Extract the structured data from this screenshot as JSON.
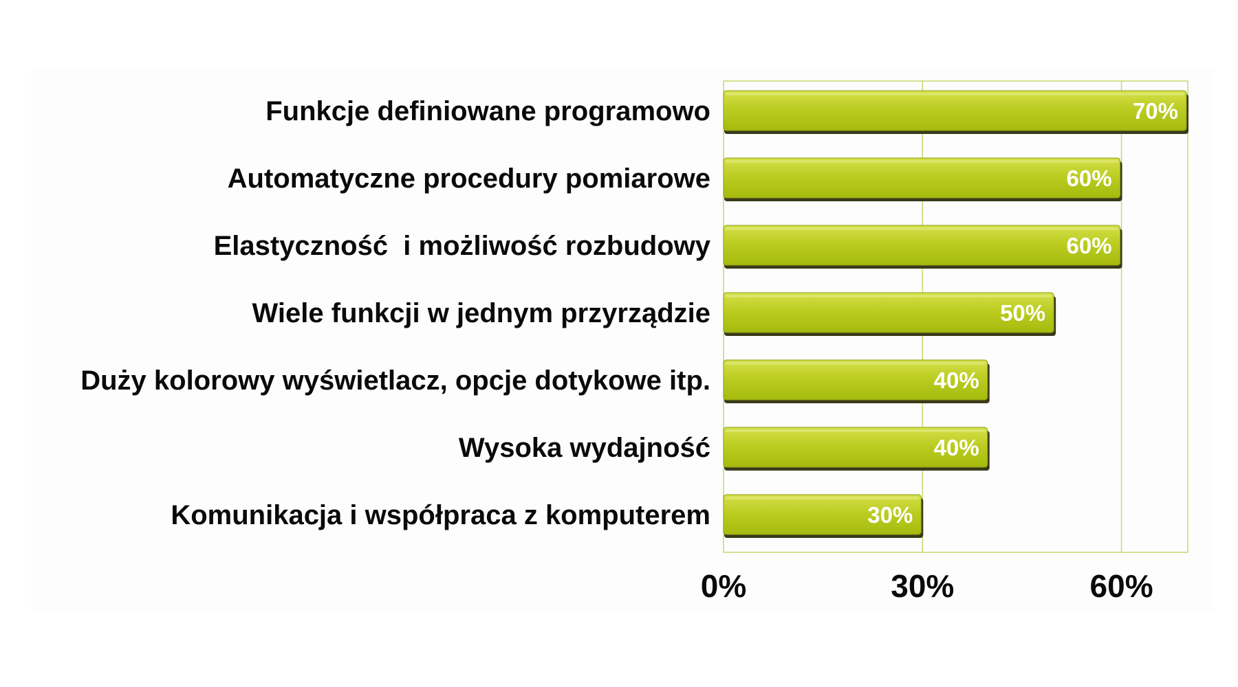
{
  "chart_data": {
    "type": "bar",
    "orientation": "horizontal",
    "categories": [
      "Funkcje definiowane programowo",
      "Automatyczne procedury pomiarowe",
      "Elastyczność  i możliwość rozbudowy",
      "Wiele funkcji w jednym przyrządzie",
      "Duży kolorowy wyświetlacz, opcje dotykowe itp.",
      "Wysoka wydajność",
      "Komunikacja i współpraca z komputerem"
    ],
    "values": [
      70,
      60,
      60,
      50,
      40,
      40,
      30
    ],
    "data_labels": [
      "70%",
      "60%",
      "60%",
      "50%",
      "40%",
      "40%",
      "30%"
    ],
    "ticks": [
      0,
      30,
      60
    ],
    "tick_labels": [
      "0%",
      "30%",
      "60%"
    ],
    "xlim": [
      0,
      70
    ],
    "grid": true,
    "legend": "none",
    "title": "",
    "xlabel": "",
    "ylabel": "",
    "colors": {
      "bar_light": "#d4e04a",
      "bar_mid": "#bccd22",
      "bar_dark": "#a6ba0e",
      "bar_shadow": "#3a3a1a",
      "grid": "#c6d86a",
      "plot_bg": "#fdfdfd",
      "data_label": "#ffffff",
      "text": "#0a0a0a"
    }
  }
}
